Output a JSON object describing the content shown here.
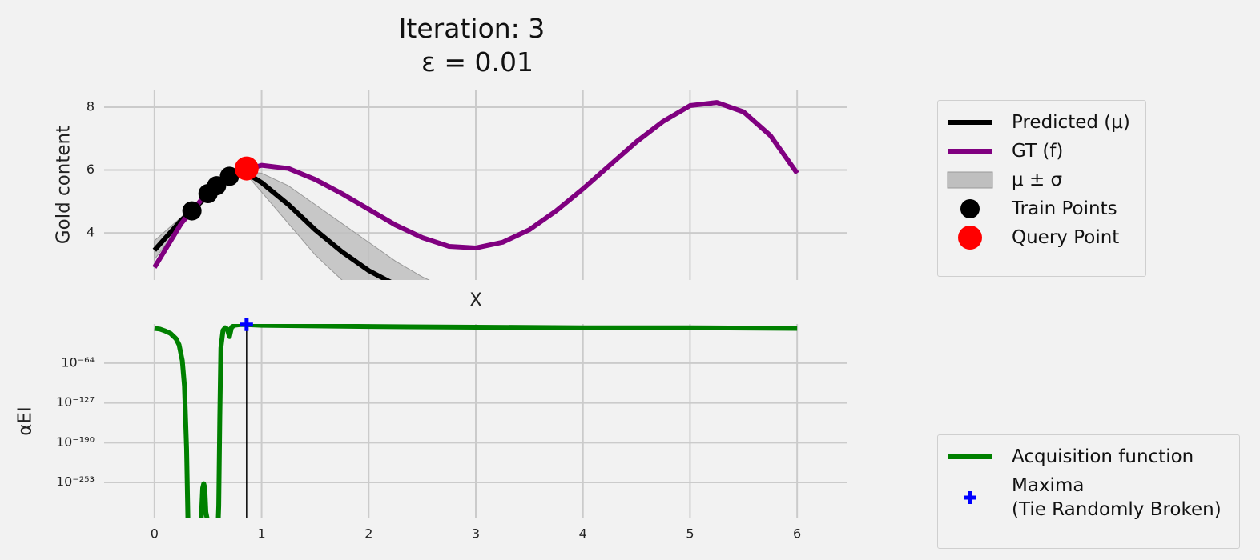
{
  "chart_data": [
    {
      "type": "line",
      "title": "Iteration: 3",
      "subtitle": "ε = 0.01",
      "ylabel": "Gold content",
      "xlim": [
        -0.47,
        6.47
      ],
      "xticks": [
        0,
        1,
        2,
        3,
        4,
        5,
        6
      ],
      "ylim": [
        2.5,
        8.56
      ],
      "yticks": [
        4,
        6,
        8
      ],
      "grid": true,
      "series": [
        {
          "name": "Predicted (μ)",
          "type": "line",
          "color": "#000000",
          "x": [
            0,
            0.25,
            0.35,
            0.5,
            0.75,
            0.86,
            1,
            1.25,
            1.5,
            1.75,
            2,
            2.25,
            2.5
          ],
          "values": [
            3.45,
            4.4,
            4.7,
            5.2,
            5.85,
            5.9,
            5.6,
            4.9,
            4.1,
            3.4,
            2.8,
            2.35,
            1.9
          ]
        },
        {
          "name": "GT (f)",
          "type": "line",
          "color": "#800080",
          "x": [
            0,
            0.25,
            0.5,
            0.75,
            1,
            1.25,
            1.5,
            1.75,
            2,
            2.25,
            2.5,
            2.75,
            3,
            3.25,
            3.5,
            3.75,
            4,
            4.25,
            4.5,
            4.75,
            5,
            5.25,
            5.5,
            5.75,
            6
          ],
          "values": [
            2.9,
            4.3,
            5.3,
            5.9,
            6.15,
            6.05,
            5.7,
            5.25,
            4.75,
            4.25,
            3.85,
            3.57,
            3.52,
            3.7,
            4.1,
            4.7,
            5.4,
            6.15,
            6.9,
            7.55,
            8.05,
            8.15,
            7.85,
            7.1,
            5.9
          ]
        },
        {
          "name": "μ ± σ",
          "type": "band",
          "color": "#bfbfbf",
          "x": [
            0,
            0.25,
            0.5,
            0.75,
            0.86,
            1,
            1.25,
            1.5,
            1.75,
            2,
            2.25,
            2.5,
            2.75
          ],
          "lower": [
            3.15,
            4.3,
            5.1,
            5.75,
            5.85,
            5.3,
            4.3,
            3.3,
            2.5,
            2.0,
            1.5,
            1.1,
            0.8
          ],
          "upper": [
            3.75,
            4.5,
            5.3,
            5.95,
            5.95,
            5.9,
            5.5,
            4.9,
            4.3,
            3.7,
            3.1,
            2.6,
            2.2
          ]
        },
        {
          "name": "Train Points",
          "type": "scatter",
          "color": "#000000",
          "x": [
            0.35,
            0.5,
            0.58,
            0.7
          ],
          "values": [
            4.7,
            5.25,
            5.5,
            5.8
          ]
        },
        {
          "name": "Query Point",
          "type": "scatter",
          "color": "#ff0000",
          "x": [
            0.86
          ],
          "values": [
            6.05
          ]
        }
      ]
    },
    {
      "type": "line",
      "xlabel": "X",
      "ylabel": "αEI",
      "yscale": "log",
      "xlim": [
        -0.47,
        6.47
      ],
      "xticks": [
        0,
        1,
        2,
        3,
        4,
        5,
        6
      ],
      "ylim": [
        1e-310,
        0.01
      ],
      "yticks": [
        {
          "value": 1e-64,
          "label": "10⁻⁶⁴"
        },
        {
          "value": 1e-127,
          "label": "10⁻¹²⁷"
        },
        {
          "value": 1e-190,
          "label": "10⁻¹⁹⁰"
        },
        {
          "value": 1e-253,
          "label": "10⁻²⁵³"
        }
      ],
      "grid": true,
      "vline_x": 0.86,
      "vline_color": "#000000",
      "series": [
        {
          "name": "Acquisition function",
          "type": "line",
          "color": "#008000",
          "x": [
            0,
            0.05,
            0.1,
            0.15,
            0.2,
            0.23,
            0.26,
            0.28,
            0.3,
            0.31,
            0.32,
            0.42,
            0.44,
            0.45,
            0.46,
            0.47,
            0.48,
            0.58,
            0.6,
            0.61,
            0.62,
            0.64,
            0.66,
            0.68,
            0.7,
            0.72,
            0.75,
            0.8,
            0.86,
            1,
            1.5,
            2,
            3,
            4,
            5,
            6
          ],
          "values": [
            1e-09,
            1e-10,
            1e-13,
            1e-17,
            1e-25,
            1e-35,
            1e-60,
            1e-100,
            1e-200,
            1e-290,
            0,
            0,
            1e-300,
            1e-262,
            1e-255,
            1e-262,
            1e-300,
            0,
            1e-290,
            1e-150,
            1e-40,
            1e-12,
            1e-08,
            1e-10,
            1e-22,
            1e-07,
            0.0001,
            0.001,
            0.001,
            0.0001,
            1e-05,
            1e-06,
            1e-07,
            1e-08,
            1e-08,
            1e-09
          ]
        },
        {
          "name": "Maxima\n(Tie Randomly Broken)",
          "type": "plus",
          "color": "#0000ff",
          "x": [
            0.86
          ],
          "values": [
            0.001
          ]
        }
      ]
    }
  ]
}
